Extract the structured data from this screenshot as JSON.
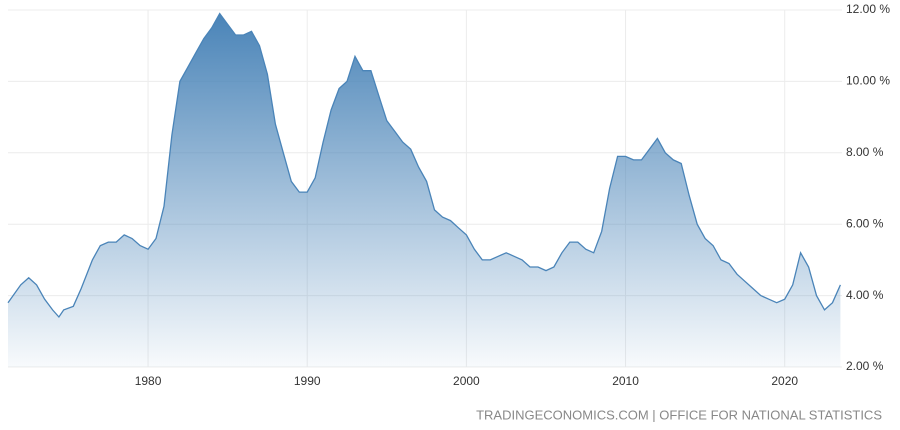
{
  "chart_data": {
    "type": "area",
    "source": "TRADINGECONOMICS.COM | OFFICE FOR NATIONAL STATISTICS",
    "color": "#4a84b8",
    "x": [
      1971.2,
      1972,
      1972.5,
      1973,
      1973.5,
      1974,
      1974.4,
      1974.7,
      1975.3,
      1975.8,
      1976.5,
      1977,
      1977.5,
      1978,
      1978.5,
      1979,
      1979.5,
      1980,
      1980.5,
      1981,
      1981.5,
      1982,
      1982.5,
      1983,
      1983.5,
      1984,
      1984.5,
      1985,
      1985.5,
      1986,
      1986.5,
      1987,
      1987.5,
      1988,
      1988.5,
      1989,
      1989.5,
      1990,
      1990.5,
      1991,
      1991.5,
      1992,
      1992.5,
      1993,
      1993.5,
      1994,
      1994.5,
      1995,
      1995.5,
      1996,
      1996.5,
      1997,
      1997.5,
      1998,
      1998.5,
      1999,
      1999.5,
      2000,
      2000.5,
      2001,
      2001.5,
      2002,
      2002.5,
      2003,
      2003.5,
      2004,
      2004.5,
      2005,
      2005.5,
      2006,
      2006.5,
      2007,
      2007.5,
      2008,
      2008.5,
      2009,
      2009.5,
      2010,
      2010.5,
      2011,
      2011.5,
      2012,
      2012.5,
      2013,
      2013.5,
      2014,
      2014.5,
      2015,
      2015.5,
      2016,
      2016.5,
      2017,
      2017.5,
      2018,
      2018.5,
      2019,
      2019.5,
      2020,
      2020.5,
      2021,
      2021.5,
      2022,
      2022.5,
      2023,
      2023.5
    ],
    "values": [
      3.8,
      4.3,
      4.5,
      4.3,
      3.9,
      3.6,
      3.4,
      3.6,
      3.7,
      4.2,
      5.0,
      5.4,
      5.5,
      5.5,
      5.7,
      5.6,
      5.4,
      5.3,
      5.6,
      6.5,
      8.5,
      10.0,
      10.4,
      10.8,
      11.2,
      11.5,
      11.9,
      11.6,
      11.3,
      11.3,
      11.4,
      11.0,
      10.2,
      8.8,
      8.0,
      7.2,
      6.9,
      6.9,
      7.3,
      8.3,
      9.2,
      9.8,
      10.0,
      10.7,
      10.3,
      10.3,
      9.6,
      8.9,
      8.6,
      8.3,
      8.1,
      7.6,
      7.2,
      6.4,
      6.2,
      6.1,
      5.9,
      5.7,
      5.3,
      5.0,
      5.0,
      5.1,
      5.2,
      5.1,
      5.0,
      4.8,
      4.8,
      4.7,
      4.8,
      5.2,
      5.5,
      5.5,
      5.3,
      5.2,
      5.8,
      7.0,
      7.9,
      7.9,
      7.8,
      7.8,
      8.1,
      8.4,
      8.0,
      7.8,
      7.7,
      6.8,
      6.0,
      5.6,
      5.4,
      5.0,
      4.9,
      4.6,
      4.4,
      4.2,
      4.0,
      3.9,
      3.8,
      3.9,
      4.3,
      5.2,
      4.8,
      4.0,
      3.6,
      3.8,
      4.3
    ],
    "xlim": [
      1971.2,
      2023.6
    ],
    "xticks": [
      1980,
      1990,
      2000,
      2010,
      2020
    ],
    "ylim": [
      2,
      12
    ],
    "yticks": [
      {
        "value": 2,
        "label": "2.00 %"
      },
      {
        "value": 4,
        "label": "4.00 %"
      },
      {
        "value": 6,
        "label": "6.00 %"
      },
      {
        "value": 8,
        "label": "8.00 %"
      },
      {
        "value": 10,
        "label": "10.00 %"
      },
      {
        "value": 12,
        "label": "12.00 %"
      }
    ],
    "grid": true
  }
}
